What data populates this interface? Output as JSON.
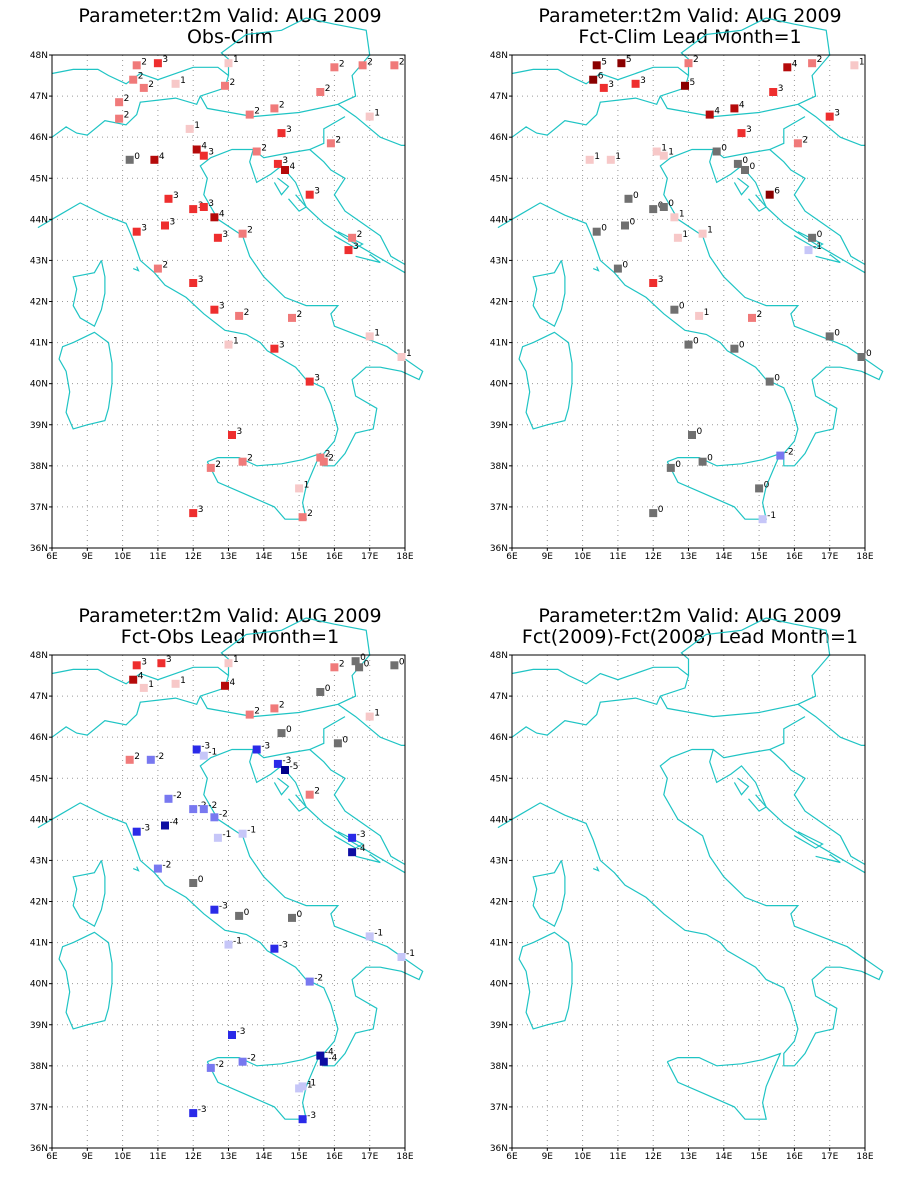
{
  "colors": {
    "coast": "#1fc4c4",
    "grid": "#9a9a9a",
    "zero": "#707070",
    "warm": {
      "1": "#f7c8c8",
      "2": "#f07a7a",
      "3": "#ee2e2e",
      "4": "#b50a0a",
      "5": "#8a0000",
      "6": "#8a0000"
    },
    "cold": {
      "1": "#c6c6f8",
      "2": "#7878f0",
      "3": "#2a2ae8",
      "4": "#0d0da2",
      "5": "#00008a"
    }
  },
  "axes": {
    "lon_ticks": [
      "6E",
      "9E",
      "10E",
      "11E",
      "12E",
      "13E",
      "14E",
      "15E",
      "16E",
      "17E",
      "18E"
    ],
    "lat_ticks": [
      "48N",
      "47N",
      "46N",
      "45N",
      "44N",
      "43N",
      "42N",
      "41N",
      "40N",
      "39N",
      "38N",
      "37N",
      "36N"
    ]
  },
  "panels": [
    {
      "title_line1": "Parameter:t2m Valid: AUG 2009",
      "title_line2": "Obs-Clim",
      "stations": [
        {
          "lon": 10.4,
          "lat": 47.75,
          "v": "2"
        },
        {
          "lon": 11.0,
          "lat": 47.8,
          "v": "3"
        },
        {
          "lon": 13.0,
          "lat": 47.8,
          "v": "1"
        },
        {
          "lon": 16.0,
          "lat": 47.7,
          "v": "2"
        },
        {
          "lon": 16.8,
          "lat": 47.75,
          "v": "2"
        },
        {
          "lon": 17.7,
          "lat": 47.75,
          "v": "2"
        },
        {
          "lon": 10.3,
          "lat": 47.4,
          "v": "2"
        },
        {
          "lon": 10.6,
          "lat": 47.2,
          "v": "2"
        },
        {
          "lon": 11.5,
          "lat": 47.3,
          "v": "1"
        },
        {
          "lon": 12.9,
          "lat": 47.25,
          "v": "2"
        },
        {
          "lon": 15.6,
          "lat": 47.1,
          "v": "2"
        },
        {
          "lon": 9.9,
          "lat": 46.85,
          "v": "2"
        },
        {
          "lon": 9.9,
          "lat": 46.45,
          "v": "2"
        },
        {
          "lon": 13.6,
          "lat": 46.55,
          "v": "2"
        },
        {
          "lon": 14.3,
          "lat": 46.7,
          "v": "2"
        },
        {
          "lon": 17.0,
          "lat": 46.5,
          "v": "1"
        },
        {
          "lon": 11.9,
          "lat": 46.2,
          "v": "1"
        },
        {
          "lon": 14.5,
          "lat": 46.1,
          "v": "3"
        },
        {
          "lon": 15.9,
          "lat": 45.85,
          "v": "2"
        },
        {
          "lon": 10.2,
          "lat": 45.45,
          "v": "0"
        },
        {
          "lon": 10.9,
          "lat": 45.45,
          "v": "4"
        },
        {
          "lon": 12.1,
          "lat": 45.7,
          "v": "4"
        },
        {
          "lon": 12.3,
          "lat": 45.55,
          "v": "3"
        },
        {
          "lon": 13.8,
          "lat": 45.65,
          "v": "2"
        },
        {
          "lon": 14.4,
          "lat": 45.35,
          "v": "3"
        },
        {
          "lon": 14.6,
          "lat": 45.2,
          "v": "4"
        },
        {
          "lon": 11.3,
          "lat": 44.5,
          "v": "3"
        },
        {
          "lon": 15.3,
          "lat": 44.6,
          "v": "3"
        },
        {
          "lon": 12.0,
          "lat": 44.25,
          "v": "3"
        },
        {
          "lon": 12.3,
          "lat": 44.3,
          "v": "3"
        },
        {
          "lon": 12.6,
          "lat": 44.05,
          "v": "4"
        },
        {
          "lon": 11.2,
          "lat": 43.85,
          "v": "3"
        },
        {
          "lon": 10.4,
          "lat": 43.7,
          "v": "3"
        },
        {
          "lon": 12.7,
          "lat": 43.55,
          "v": "3"
        },
        {
          "lon": 13.4,
          "lat": 43.65,
          "v": "2"
        },
        {
          "lon": 16.5,
          "lat": 43.55,
          "v": "2"
        },
        {
          "lon": 16.4,
          "lat": 43.25,
          "v": "3"
        },
        {
          "lon": 11.0,
          "lat": 42.8,
          "v": "2"
        },
        {
          "lon": 12.0,
          "lat": 42.45,
          "v": "3"
        },
        {
          "lon": 12.6,
          "lat": 41.8,
          "v": "3"
        },
        {
          "lon": 13.3,
          "lat": 41.65,
          "v": "2"
        },
        {
          "lon": 14.8,
          "lat": 41.6,
          "v": "2"
        },
        {
          "lon": 17.0,
          "lat": 41.15,
          "v": "1"
        },
        {
          "lon": 17.9,
          "lat": 40.65,
          "v": "1"
        },
        {
          "lon": 13.0,
          "lat": 40.95,
          "v": "1"
        },
        {
          "lon": 14.3,
          "lat": 40.85,
          "v": "3"
        },
        {
          "lon": 15.3,
          "lat": 40.05,
          "v": "3"
        },
        {
          "lon": 13.1,
          "lat": 38.75,
          "v": "3"
        },
        {
          "lon": 13.4,
          "lat": 38.1,
          "v": "2"
        },
        {
          "lon": 12.5,
          "lat": 37.95,
          "v": "2"
        },
        {
          "lon": 15.6,
          "lat": 38.2,
          "v": "2"
        },
        {
          "lon": 15.7,
          "lat": 38.1,
          "v": "2"
        },
        {
          "lon": 15.0,
          "lat": 37.45,
          "v": "1"
        },
        {
          "lon": 15.1,
          "lat": 36.75,
          "v": "2"
        },
        {
          "lon": 12.0,
          "lat": 36.85,
          "v": "3"
        }
      ]
    },
    {
      "title_line1": "Parameter:t2m Valid: AUG 2009",
      "title_line2": "Fct-Clim Lead Month=1",
      "stations": [
        {
          "lon": 10.4,
          "lat": 47.75,
          "v": "5"
        },
        {
          "lon": 11.1,
          "lat": 47.8,
          "v": "5"
        },
        {
          "lon": 13.0,
          "lat": 47.8,
          "v": "2"
        },
        {
          "lon": 15.8,
          "lat": 47.7,
          "v": "4"
        },
        {
          "lon": 16.5,
          "lat": 47.8,
          "v": "2"
        },
        {
          "lon": 17.7,
          "lat": 47.75,
          "v": "1"
        },
        {
          "lon": 10.3,
          "lat": 47.4,
          "v": "6"
        },
        {
          "lon": 10.6,
          "lat": 47.2,
          "v": "3"
        },
        {
          "lon": 11.5,
          "lat": 47.3,
          "v": "3"
        },
        {
          "lon": 12.9,
          "lat": 47.25,
          "v": "5"
        },
        {
          "lon": 15.4,
          "lat": 47.1,
          "v": "3"
        },
        {
          "lon": 13.6,
          "lat": 46.55,
          "v": "4"
        },
        {
          "lon": 14.3,
          "lat": 46.7,
          "v": "4"
        },
        {
          "lon": 17.0,
          "lat": 46.5,
          "v": "3"
        },
        {
          "lon": 14.5,
          "lat": 46.1,
          "v": "3"
        },
        {
          "lon": 16.1,
          "lat": 45.85,
          "v": "2"
        },
        {
          "lon": 10.2,
          "lat": 45.45,
          "v": "1"
        },
        {
          "lon": 10.8,
          "lat": 45.45,
          "v": "1"
        },
        {
          "lon": 12.1,
          "lat": 45.65,
          "v": "1"
        },
        {
          "lon": 12.3,
          "lat": 45.55,
          "v": "1"
        },
        {
          "lon": 13.8,
          "lat": 45.65,
          "v": "0"
        },
        {
          "lon": 14.4,
          "lat": 45.35,
          "v": "0"
        },
        {
          "lon": 14.6,
          "lat": 45.2,
          "v": "0"
        },
        {
          "lon": 11.3,
          "lat": 44.5,
          "v": "0"
        },
        {
          "lon": 15.3,
          "lat": 44.6,
          "v": "6"
        },
        {
          "lon": 12.0,
          "lat": 44.25,
          "v": "0"
        },
        {
          "lon": 12.3,
          "lat": 44.3,
          "v": "0"
        },
        {
          "lon": 12.6,
          "lat": 44.05,
          "v": "1"
        },
        {
          "lon": 11.2,
          "lat": 43.85,
          "v": "0"
        },
        {
          "lon": 10.4,
          "lat": 43.7,
          "v": "0"
        },
        {
          "lon": 12.7,
          "lat": 43.55,
          "v": "1"
        },
        {
          "lon": 13.4,
          "lat": 43.65,
          "v": "1"
        },
        {
          "lon": 16.5,
          "lat": 43.55,
          "v": "0"
        },
        {
          "lon": 16.4,
          "lat": 43.25,
          "v": "-1"
        },
        {
          "lon": 11.0,
          "lat": 42.8,
          "v": "0"
        },
        {
          "lon": 12.0,
          "lat": 42.45,
          "v": "3"
        },
        {
          "lon": 12.6,
          "lat": 41.8,
          "v": "0"
        },
        {
          "lon": 13.3,
          "lat": 41.65,
          "v": "1"
        },
        {
          "lon": 14.8,
          "lat": 41.6,
          "v": "2"
        },
        {
          "lon": 17.0,
          "lat": 41.15,
          "v": "0"
        },
        {
          "lon": 17.9,
          "lat": 40.65,
          "v": "0"
        },
        {
          "lon": 13.0,
          "lat": 40.95,
          "v": "0"
        },
        {
          "lon": 14.3,
          "lat": 40.85,
          "v": "0"
        },
        {
          "lon": 15.3,
          "lat": 40.05,
          "v": "0"
        },
        {
          "lon": 13.1,
          "lat": 38.75,
          "v": "0"
        },
        {
          "lon": 13.4,
          "lat": 38.1,
          "v": "0"
        },
        {
          "lon": 12.5,
          "lat": 37.95,
          "v": "0"
        },
        {
          "lon": 15.6,
          "lat": 38.25,
          "v": "-2"
        },
        {
          "lon": 15.0,
          "lat": 37.45,
          "v": "0"
        },
        {
          "lon": 15.1,
          "lat": 36.7,
          "v": "-1"
        },
        {
          "lon": 12.0,
          "lat": 36.85,
          "v": "0"
        }
      ]
    },
    {
      "title_line1": "Parameter:t2m Valid: AUG 2009",
      "title_line2": "Fct-Obs Lead Month=1",
      "stations": [
        {
          "lon": 10.4,
          "lat": 47.75,
          "v": "3"
        },
        {
          "lon": 11.1,
          "lat": 47.8,
          "v": "3"
        },
        {
          "lon": 13.0,
          "lat": 47.8,
          "v": "1"
        },
        {
          "lon": 16.0,
          "lat": 47.7,
          "v": "2"
        },
        {
          "lon": 16.6,
          "lat": 47.85,
          "v": "0"
        },
        {
          "lon": 16.7,
          "lat": 47.7,
          "v": "0"
        },
        {
          "lon": 17.7,
          "lat": 47.75,
          "v": "0"
        },
        {
          "lon": 10.3,
          "lat": 47.4,
          "v": "4"
        },
        {
          "lon": 10.6,
          "lat": 47.2,
          "v": "1"
        },
        {
          "lon": 11.5,
          "lat": 47.3,
          "v": "1"
        },
        {
          "lon": 12.9,
          "lat": 47.25,
          "v": "4"
        },
        {
          "lon": 15.6,
          "lat": 47.1,
          "v": "0"
        },
        {
          "lon": 13.6,
          "lat": 46.55,
          "v": "2"
        },
        {
          "lon": 14.3,
          "lat": 46.7,
          "v": "2"
        },
        {
          "lon": 17.0,
          "lat": 46.5,
          "v": "1"
        },
        {
          "lon": 14.5,
          "lat": 46.1,
          "v": "0"
        },
        {
          "lon": 16.1,
          "lat": 45.85,
          "v": "0"
        },
        {
          "lon": 10.2,
          "lat": 45.45,
          "v": "2"
        },
        {
          "lon": 10.8,
          "lat": 45.45,
          "v": "-2"
        },
        {
          "lon": 12.1,
          "lat": 45.7,
          "v": "-3"
        },
        {
          "lon": 12.3,
          "lat": 45.55,
          "v": "-1"
        },
        {
          "lon": 13.8,
          "lat": 45.7,
          "v": "-3"
        },
        {
          "lon": 14.4,
          "lat": 45.35,
          "v": "-3"
        },
        {
          "lon": 14.6,
          "lat": 45.2,
          "v": "-5"
        },
        {
          "lon": 11.3,
          "lat": 44.5,
          "v": "-2"
        },
        {
          "lon": 15.3,
          "lat": 44.6,
          "v": "2"
        },
        {
          "lon": 12.0,
          "lat": 44.25,
          "v": "-2"
        },
        {
          "lon": 12.3,
          "lat": 44.25,
          "v": "-2"
        },
        {
          "lon": 12.6,
          "lat": 44.05,
          "v": "-2"
        },
        {
          "lon": 11.2,
          "lat": 43.85,
          "v": "-4"
        },
        {
          "lon": 10.4,
          "lat": 43.7,
          "v": "-3"
        },
        {
          "lon": 12.7,
          "lat": 43.55,
          "v": "-1"
        },
        {
          "lon": 13.4,
          "lat": 43.65,
          "v": "-1"
        },
        {
          "lon": 16.5,
          "lat": 43.55,
          "v": "-3"
        },
        {
          "lon": 16.5,
          "lat": 43.2,
          "v": "-4"
        },
        {
          "lon": 11.0,
          "lat": 42.8,
          "v": "-2"
        },
        {
          "lon": 12.0,
          "lat": 42.45,
          "v": "0"
        },
        {
          "lon": 12.6,
          "lat": 41.8,
          "v": "-3"
        },
        {
          "lon": 13.3,
          "lat": 41.65,
          "v": "0"
        },
        {
          "lon": 14.8,
          "lat": 41.6,
          "v": "0"
        },
        {
          "lon": 17.0,
          "lat": 41.15,
          "v": "-1"
        },
        {
          "lon": 17.9,
          "lat": 40.65,
          "v": "-1"
        },
        {
          "lon": 13.0,
          "lat": 40.95,
          "v": "-1"
        },
        {
          "lon": 14.3,
          "lat": 40.85,
          "v": "-3"
        },
        {
          "lon": 15.3,
          "lat": 40.05,
          "v": "-2"
        },
        {
          "lon": 13.1,
          "lat": 38.75,
          "v": "-3"
        },
        {
          "lon": 13.4,
          "lat": 38.1,
          "v": "-2"
        },
        {
          "lon": 12.5,
          "lat": 37.95,
          "v": "-2"
        },
        {
          "lon": 15.6,
          "lat": 38.25,
          "v": "-4"
        },
        {
          "lon": 15.7,
          "lat": 38.1,
          "v": "-4"
        },
        {
          "lon": 15.0,
          "lat": 37.45,
          "v": "-1"
        },
        {
          "lon": 15.1,
          "lat": 37.5,
          "v": "-1"
        },
        {
          "lon": 15.1,
          "lat": 36.7,
          "v": "-3"
        },
        {
          "lon": 12.0,
          "lat": 36.85,
          "v": "-3"
        }
      ]
    },
    {
      "title_line1": "Parameter:t2m Valid: AUG 2009",
      "title_line2": "Fct(2009)-Fct(2008) Lead Month=1",
      "stations": []
    }
  ]
}
